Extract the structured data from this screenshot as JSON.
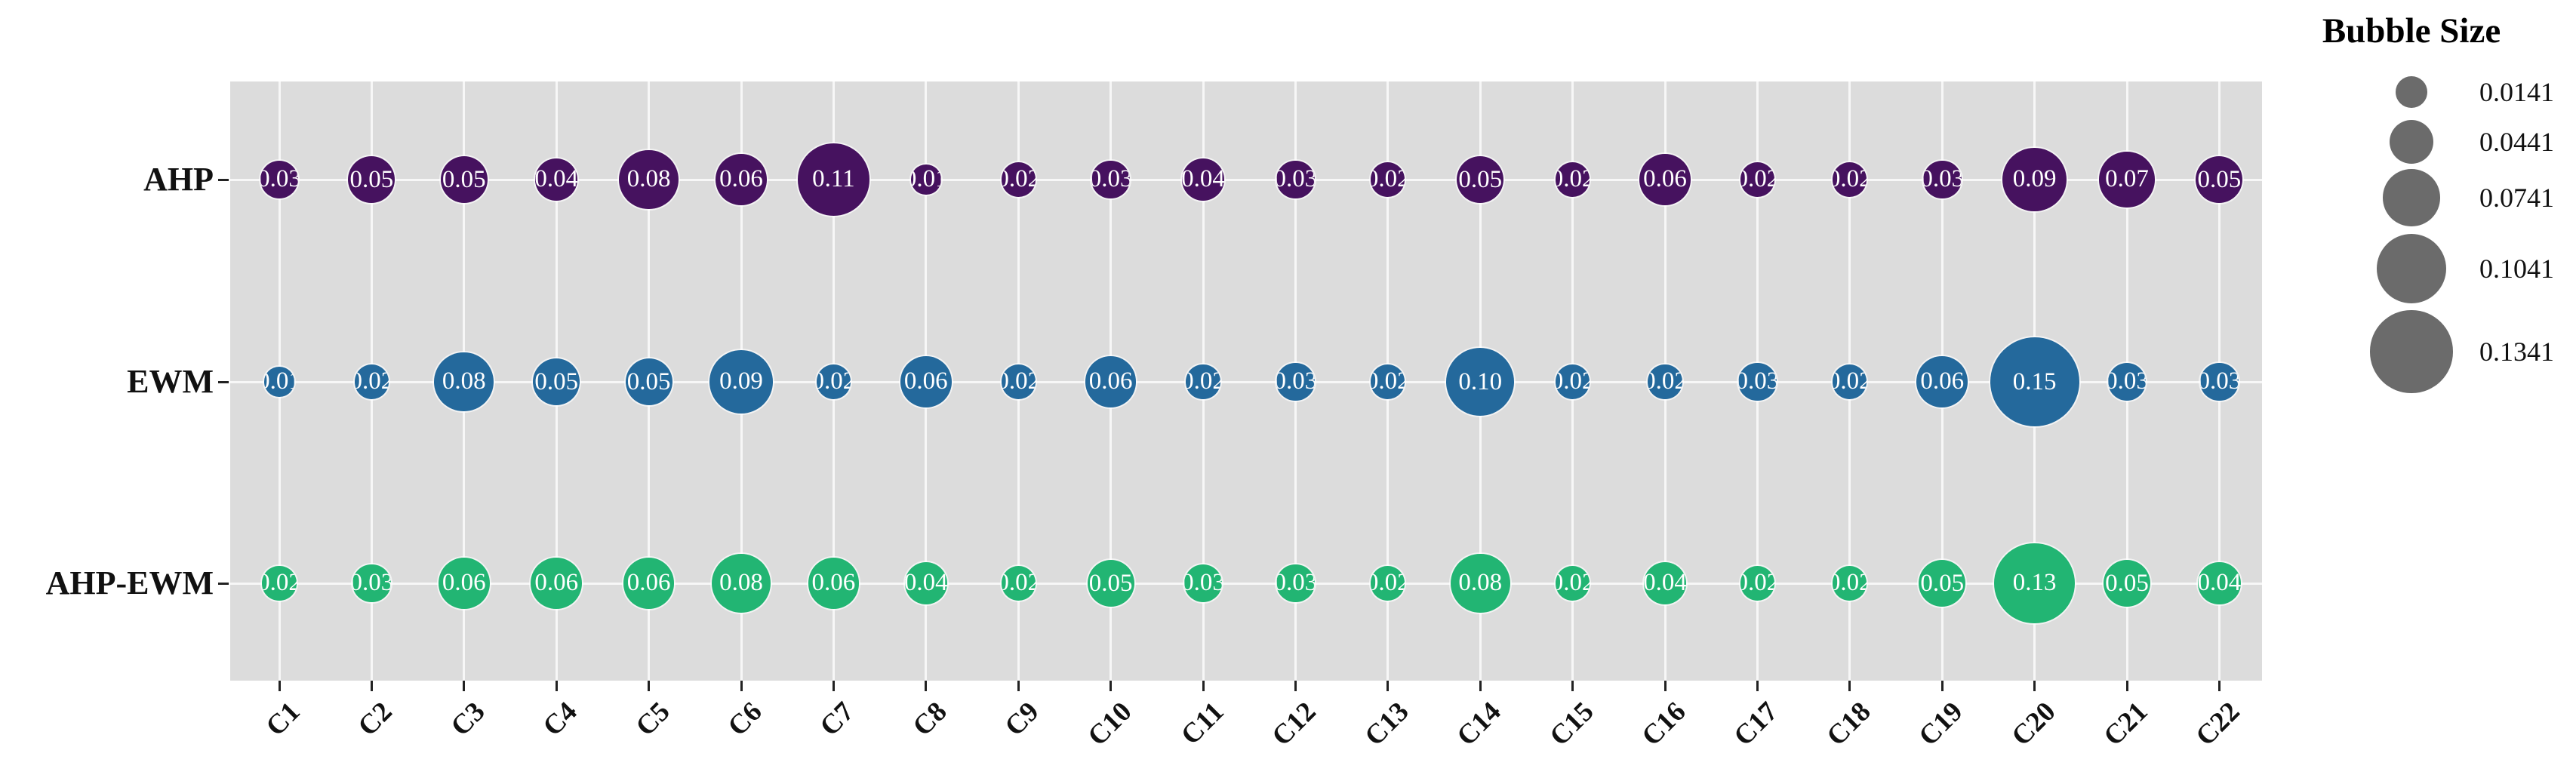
{
  "figure": {
    "background": "#ffffff",
    "plot_background": "#dcdcdc",
    "grid_color": "#f7f7f7",
    "tick_color": "#222222"
  },
  "chart_data": {
    "type": "bubble",
    "title": "",
    "categories": [
      "C1",
      "C2",
      "C3",
      "C4",
      "C5",
      "C6",
      "C7",
      "C8",
      "C9",
      "C10",
      "C11",
      "C12",
      "C13",
      "C14",
      "C15",
      "C16",
      "C17",
      "C18",
      "C19",
      "C20",
      "C21",
      "C22"
    ],
    "series": [
      {
        "name": "AHP",
        "color": "#46125f",
        "values": [
          0.03,
          0.05,
          0.05,
          0.04,
          0.08,
          0.06,
          0.11,
          0.01,
          0.02,
          0.03,
          0.04,
          0.03,
          0.02,
          0.05,
          0.02,
          0.06,
          0.02,
          0.02,
          0.03,
          0.09,
          0.07,
          0.05
        ]
      },
      {
        "name": "EWM",
        "color": "#24699c",
        "values": [
          0.01,
          0.02,
          0.08,
          0.05,
          0.05,
          0.09,
          0.02,
          0.06,
          0.02,
          0.06,
          0.02,
          0.03,
          0.02,
          0.1,
          0.02,
          0.02,
          0.03,
          0.02,
          0.06,
          0.15,
          0.03,
          0.03
        ]
      },
      {
        "name": "AHP-EWM",
        "color": "#22b573",
        "values": [
          0.02,
          0.03,
          0.06,
          0.06,
          0.06,
          0.08,
          0.06,
          0.04,
          0.02,
          0.05,
          0.03,
          0.03,
          0.02,
          0.08,
          0.02,
          0.04,
          0.02,
          0.02,
          0.05,
          0.13,
          0.05,
          0.04
        ]
      }
    ],
    "value_label_decimals": 2,
    "grid": true,
    "legend": {
      "title": "Bubble Size",
      "position": "right",
      "color": "#6b6b6b",
      "sizes": [
        0.0141,
        0.0441,
        0.0741,
        0.1041,
        0.1341
      ],
      "size_label_decimals": 4
    }
  }
}
